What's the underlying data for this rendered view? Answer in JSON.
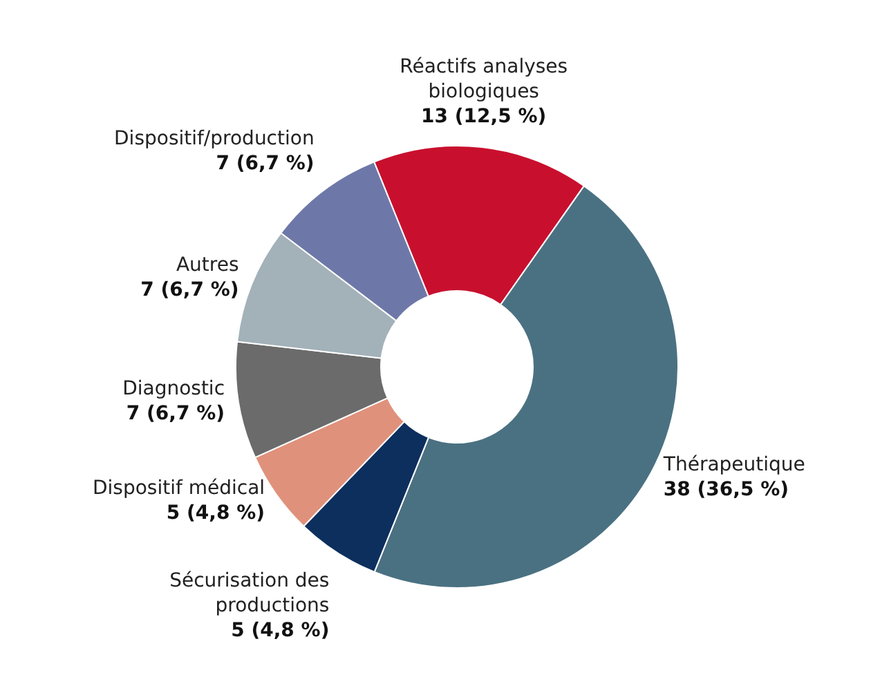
{
  "chart_data": {
    "type": "donut",
    "categories": [
      "Réactifs analyses biologiques",
      "Thérapeutique",
      "Sécurisation des productions",
      "Dispositif médical",
      "Diagnostic",
      "Autres",
      "Dispositif/production"
    ],
    "values": [
      13,
      38,
      5,
      5,
      7,
      7,
      7
    ],
    "value_labels": [
      "13 (12,5 %)",
      "38 (36,5 %)",
      "5 (4,8 %)",
      "5 (4,8 %)",
      "7 (6,7 %)",
      "7 (6,7 %)",
      "7 (6,7 %)"
    ],
    "colors": [
      "#c8102e",
      "#4a7182",
      "#0d2f5e",
      "#e0917b",
      "#6b6b6b",
      "#a3b1b9",
      "#6e78a8"
    ]
  }
}
